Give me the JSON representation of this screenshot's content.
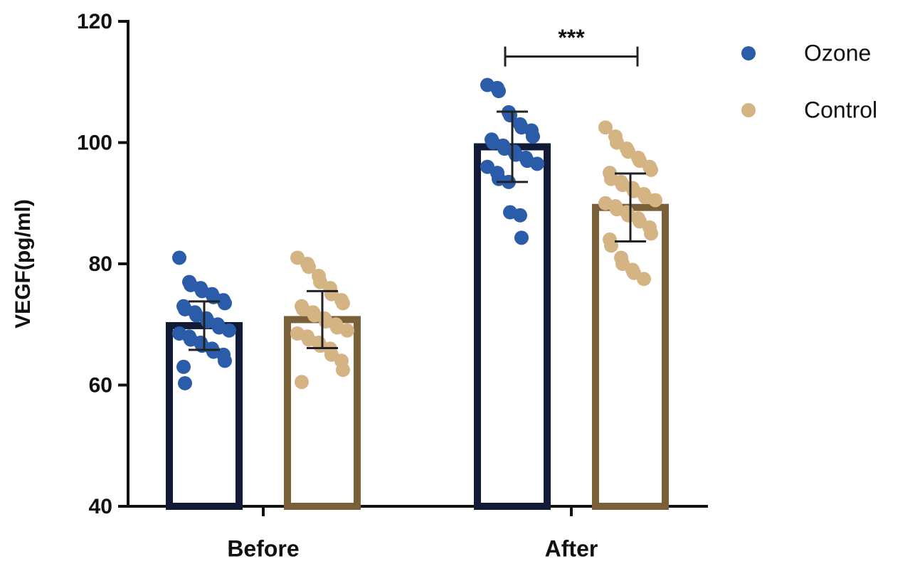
{
  "chart_data": {
    "type": "bar",
    "y_label": "VEGF(pg/ml)",
    "categories": [
      "Before",
      "After"
    ],
    "ylim": [
      40,
      120
    ],
    "yticks": [
      40,
      60,
      80,
      100,
      120
    ],
    "legend_position": "top-right",
    "series": [
      {
        "name": "Ozone",
        "color": "#2a5caa",
        "edge_color": "#111a36",
        "values": [
          69.8,
          99.3
        ],
        "errors": [
          4.0,
          5.8
        ],
        "points": [
          [
            81,
            77,
            76.5,
            76,
            75.5,
            75,
            74.5,
            74,
            73.5,
            73,
            72.5,
            72,
            71.5,
            71,
            70.5,
            70,
            69.5,
            69,
            68.5,
            68,
            67.5,
            67,
            66.5,
            66,
            65.5,
            65,
            64,
            63,
            60.3
          ],
          [
            109.5,
            109,
            108.5,
            105,
            104.5,
            103,
            102.5,
            102,
            101,
            100.5,
            100,
            99.5,
            99,
            98.5,
            98,
            97.5,
            97,
            96.5,
            96,
            95,
            94,
            93.5,
            88.5,
            88,
            84.3
          ]
        ]
      },
      {
        "name": "Control",
        "color": "#d4b483",
        "edge_color": "#7a6038",
        "values": [
          70.8,
          89.3
        ],
        "errors": [
          4.7,
          5.6
        ],
        "points": [
          [
            81,
            80,
            79.5,
            78,
            77,
            76,
            75,
            74,
            73.5,
            73,
            72.5,
            72,
            71.5,
            71,
            70.5,
            70,
            69.5,
            69,
            68.5,
            68,
            67.5,
            67,
            66.5,
            66,
            65,
            64,
            62.5,
            60.5
          ],
          [
            102.5,
            101,
            100,
            99,
            98.5,
            97.5,
            97,
            96,
            95.5,
            95,
            94,
            93.5,
            93,
            92.5,
            92,
            91.5,
            91,
            90.5,
            90,
            89.5,
            89,
            88.5,
            88,
            87.5,
            87,
            86,
            85,
            84,
            83,
            81,
            80,
            79,
            78.5,
            77.5
          ]
        ]
      }
    ],
    "annotations": [
      {
        "text": "***",
        "category": 1
      }
    ]
  }
}
